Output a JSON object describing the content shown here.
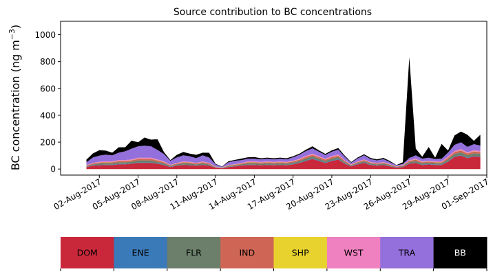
{
  "chart_data": {
    "type": "area",
    "stacked": true,
    "title": "Source contribution to BC concentrations",
    "ylabel": "BC concentration (ng m",
    "ylabel_superscript": "−3",
    "ylabel_suffix": ")",
    "xlabel": "",
    "ylim": [
      -45,
      1100
    ],
    "yticks": [
      0,
      200,
      400,
      600,
      800,
      1000
    ],
    "x_range": [
      "2017-07-30",
      "2017-09-01"
    ],
    "xticks": [
      {
        "date": "2017-08-02",
        "label": "02-Aug-2017"
      },
      {
        "date": "2017-08-05",
        "label": "05-Aug-2017"
      },
      {
        "date": "2017-08-08",
        "label": "08-Aug-2017"
      },
      {
        "date": "2017-08-11",
        "label": "11-Aug-2017"
      },
      {
        "date": "2017-08-14",
        "label": "14-Aug-2017"
      },
      {
        "date": "2017-08-17",
        "label": "17-Aug-2017"
      },
      {
        "date": "2017-08-20",
        "label": "20-Aug-2017"
      },
      {
        "date": "2017-08-23",
        "label": "23-Aug-2017"
      },
      {
        "date": "2017-08-26",
        "label": "26-Aug-2017"
      },
      {
        "date": "2017-08-29",
        "label": "29-Aug-2017"
      },
      {
        "date": "2017-09-01",
        "label": "01-Sep-2017"
      }
    ],
    "grid": false,
    "x": [
      "2017-08-01 00:00",
      "2017-08-01 12:00",
      "2017-08-02 00:00",
      "2017-08-02 12:00",
      "2017-08-03 00:00",
      "2017-08-03 12:00",
      "2017-08-04 00:00",
      "2017-08-04 12:00",
      "2017-08-05 00:00",
      "2017-08-05 12:00",
      "2017-08-06 00:00",
      "2017-08-06 12:00",
      "2017-08-07 00:00",
      "2017-08-07 12:00",
      "2017-08-08 00:00",
      "2017-08-08 12:00",
      "2017-08-09 00:00",
      "2017-08-09 12:00",
      "2017-08-10 00:00",
      "2017-08-10 12:00",
      "2017-08-11 00:00",
      "2017-08-11 12:00",
      "2017-08-12 00:00",
      "2017-08-12 12:00",
      "2017-08-13 00:00",
      "2017-08-13 12:00",
      "2017-08-14 00:00",
      "2017-08-14 12:00",
      "2017-08-15 00:00",
      "2017-08-15 12:00",
      "2017-08-16 00:00",
      "2017-08-16 12:00",
      "2017-08-17 00:00",
      "2017-08-17 12:00",
      "2017-08-18 00:00",
      "2017-08-18 12:00",
      "2017-08-19 00:00",
      "2017-08-19 12:00",
      "2017-08-20 00:00",
      "2017-08-20 12:00",
      "2017-08-21 00:00",
      "2017-08-21 12:00",
      "2017-08-22 00:00",
      "2017-08-22 12:00",
      "2017-08-23 00:00",
      "2017-08-23 12:00",
      "2017-08-24 00:00",
      "2017-08-24 12:00",
      "2017-08-25 00:00",
      "2017-08-25 12:00",
      "2017-08-26 00:00",
      "2017-08-26 12:00",
      "2017-08-27 00:00",
      "2017-08-27 12:00",
      "2017-08-28 00:00",
      "2017-08-28 12:00",
      "2017-08-29 00:00",
      "2017-08-29 12:00",
      "2017-08-30 00:00",
      "2017-08-30 12:00",
      "2017-08-31 00:00",
      "2017-08-31 12:00"
    ],
    "series": [
      {
        "name": "DOM",
        "color": "#c9283a",
        "values": [
          15,
          25,
          28,
          30,
          30,
          35,
          35,
          40,
          45,
          45,
          45,
          40,
          30,
          15,
          25,
          30,
          28,
          25,
          30,
          25,
          10,
          5,
          15,
          20,
          25,
          30,
          30,
          28,
          30,
          28,
          30,
          28,
          35,
          45,
          60,
          75,
          60,
          45,
          60,
          70,
          40,
          20,
          35,
          45,
          30,
          25,
          30,
          20,
          10,
          15,
          40,
          45,
          30,
          35,
          30,
          30,
          55,
          90,
          100,
          80,
          95,
          90
        ]
      },
      {
        "name": "ENE",
        "color": "#3b7ab8",
        "values": [
          2,
          2,
          3,
          3,
          3,
          3,
          3,
          3,
          4,
          4,
          4,
          3,
          3,
          2,
          2,
          3,
          3,
          2,
          3,
          2,
          1,
          1,
          2,
          2,
          2,
          3,
          3,
          2,
          3,
          2,
          3,
          2,
          3,
          3,
          4,
          4,
          4,
          3,
          4,
          4,
          3,
          2,
          3,
          3,
          3,
          2,
          3,
          2,
          1,
          2,
          3,
          3,
          3,
          3,
          3,
          3,
          3,
          4,
          4,
          4,
          4,
          4
        ]
      },
      {
        "name": "FLR",
        "color": "#6b7f6b",
        "values": [
          5,
          8,
          10,
          10,
          10,
          12,
          12,
          12,
          15,
          15,
          15,
          12,
          10,
          6,
          8,
          10,
          10,
          8,
          10,
          8,
          3,
          2,
          5,
          6,
          8,
          10,
          10,
          10,
          10,
          10,
          10,
          10,
          10,
          12,
          15,
          15,
          14,
          12,
          14,
          15,
          10,
          5,
          8,
          10,
          8,
          8,
          8,
          6,
          4,
          5,
          10,
          12,
          10,
          10,
          10,
          10,
          15,
          18,
          20,
          18,
          18,
          18
        ]
      },
      {
        "name": "IND",
        "color": "#cf6655",
        "values": [
          4,
          6,
          8,
          8,
          8,
          10,
          10,
          10,
          12,
          12,
          12,
          10,
          8,
          5,
          6,
          8,
          8,
          6,
          8,
          6,
          2,
          2,
          4,
          5,
          6,
          8,
          8,
          8,
          8,
          8,
          8,
          8,
          8,
          10,
          12,
          12,
          11,
          10,
          11,
          12,
          8,
          4,
          6,
          8,
          6,
          6,
          6,
          5,
          3,
          4,
          8,
          10,
          8,
          8,
          8,
          8,
          12,
          14,
          15,
          14,
          14,
          14
        ]
      },
      {
        "name": "SHP",
        "color": "#e8d22e",
        "values": [
          1,
          1,
          1,
          1,
          1,
          1,
          1,
          1,
          1,
          1,
          1,
          1,
          1,
          1,
          1,
          1,
          1,
          1,
          1,
          1,
          1,
          1,
          1,
          1,
          1,
          1,
          1,
          1,
          1,
          1,
          1,
          1,
          1,
          1,
          1,
          1,
          1,
          1,
          1,
          1,
          1,
          1,
          1,
          1,
          1,
          1,
          1,
          1,
          1,
          1,
          1,
          1,
          1,
          1,
          1,
          1,
          1,
          1,
          1,
          1,
          1,
          1
        ]
      },
      {
        "name": "WST",
        "color": "#f081c0",
        "values": [
          3,
          4,
          5,
          5,
          5,
          6,
          6,
          6,
          7,
          7,
          7,
          6,
          5,
          3,
          4,
          5,
          5,
          4,
          5,
          4,
          2,
          1,
          3,
          3,
          4,
          5,
          5,
          5,
          5,
          5,
          5,
          5,
          5,
          6,
          7,
          7,
          7,
          6,
          7,
          7,
          5,
          3,
          4,
          5,
          4,
          4,
          4,
          3,
          2,
          3,
          5,
          6,
          5,
          5,
          5,
          5,
          7,
          8,
          9,
          8,
          8,
          8
        ]
      },
      {
        "name": "TRA",
        "color": "#9370db",
        "values": [
          20,
          40,
          45,
          50,
          45,
          55,
          65,
          80,
          85,
          90,
          85,
          70,
          55,
          30,
          40,
          45,
          40,
          35,
          45,
          40,
          15,
          5,
          20,
          25,
          20,
          20,
          20,
          18,
          20,
          18,
          20,
          18,
          25,
          30,
          35,
          40,
          32,
          28,
          32,
          35,
          25,
          12,
          22,
          30,
          22,
          18,
          22,
          15,
          7,
          8,
          15,
          25,
          20,
          22,
          18,
          20,
          30,
          45,
          50,
          40,
          45,
          40
        ]
      },
      {
        "name": "BB",
        "color": "#000000",
        "values": [
          20,
          30,
          40,
          30,
          20,
          40,
          30,
          60,
          30,
          60,
          50,
          80,
          15,
          5,
          20,
          25,
          20,
          25,
          20,
          35,
          5,
          2,
          8,
          6,
          12,
          10,
          12,
          8,
          8,
          8,
          8,
          8,
          8,
          8,
          10,
          15,
          10,
          8,
          10,
          12,
          8,
          5,
          7,
          8,
          8,
          8,
          9,
          8,
          2,
          12,
          750,
          50,
          15,
          80,
          10,
          110,
          15,
          70,
          80,
          90,
          25,
          80
        ]
      }
    ]
  },
  "legend": [
    {
      "label": "DOM",
      "color": "#c9283a",
      "text_color": "#000000"
    },
    {
      "label": "ENE",
      "color": "#3b7ab8",
      "text_color": "#000000"
    },
    {
      "label": "FLR",
      "color": "#6b7f6b",
      "text_color": "#000000"
    },
    {
      "label": "IND",
      "color": "#cf6655",
      "text_color": "#000000"
    },
    {
      "label": "SHP",
      "color": "#e8d22e",
      "text_color": "#000000"
    },
    {
      "label": "WST",
      "color": "#f081c0",
      "text_color": "#000000"
    },
    {
      "label": "TRA",
      "color": "#9370db",
      "text_color": "#000000"
    },
    {
      "label": "BB",
      "color": "#000000",
      "text_color": "#ffffff"
    }
  ]
}
